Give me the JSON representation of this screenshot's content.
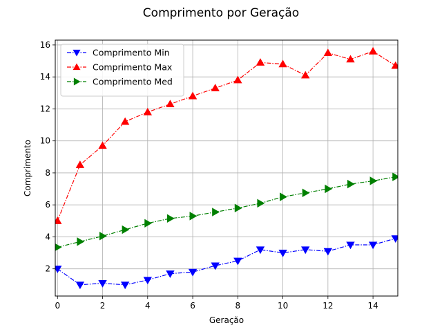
{
  "chart_data": {
    "type": "line",
    "title": "Comprimento por Geração",
    "xlabel": "Geração",
    "ylabel": "Comprimento",
    "xlim": [
      -0.1,
      15.1
    ],
    "ylim": [
      0.3,
      16.3
    ],
    "xticks": [
      0,
      2,
      4,
      6,
      8,
      10,
      12,
      14
    ],
    "yticks": [
      2,
      4,
      6,
      8,
      10,
      12,
      14,
      16
    ],
    "grid": true,
    "legend_position": "top-left",
    "x": [
      0,
      1,
      2,
      3,
      4,
      5,
      6,
      7,
      8,
      9,
      10,
      11,
      12,
      13,
      14,
      15
    ],
    "series": [
      {
        "name": "Comprimento Min",
        "color": "#0000ff",
        "marker": "triangle-down",
        "values": [
          2.0,
          1.0,
          1.1,
          1.0,
          1.3,
          1.7,
          1.8,
          2.2,
          2.5,
          3.2,
          3.0,
          3.2,
          3.1,
          3.5,
          3.5,
          3.9
        ]
      },
      {
        "name": "Comprimento Max",
        "color": "#ff0000",
        "marker": "triangle-up",
        "values": [
          5.0,
          8.5,
          9.7,
          11.2,
          11.8,
          12.3,
          12.8,
          13.3,
          13.8,
          14.9,
          14.8,
          14.1,
          15.5,
          15.1,
          15.6,
          14.7
        ]
      },
      {
        "name": "Comprimento Med",
        "color": "#008000",
        "marker": "triangle-right",
        "values": [
          3.35,
          3.7,
          4.05,
          4.45,
          4.85,
          5.15,
          5.3,
          5.55,
          5.8,
          6.1,
          6.5,
          6.75,
          7.0,
          7.3,
          7.5,
          7.75
        ]
      }
    ]
  }
}
